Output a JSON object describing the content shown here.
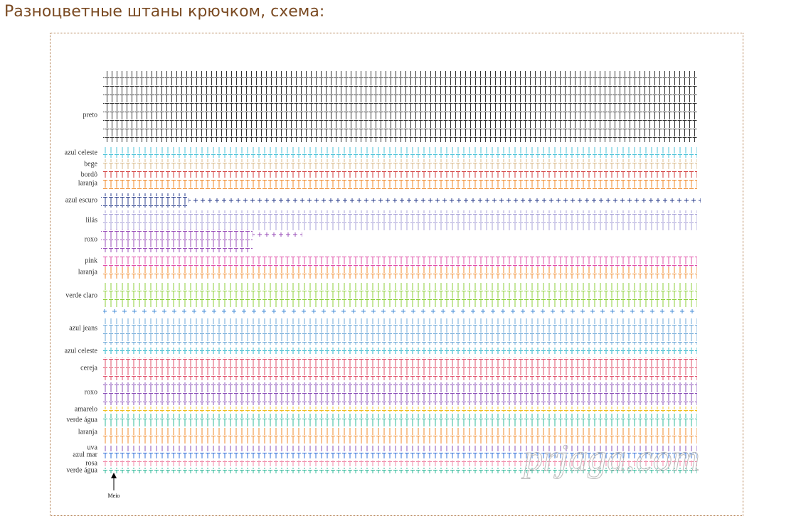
{
  "heading": "Разноцветные штаны крючком, схема:",
  "diagram": {
    "row_labels": [
      "preto",
      "azul celeste",
      "bege",
      "bordô",
      "laranja",
      "azul escuro",
      "lilás",
      "roxo",
      "pink",
      "laranja",
      "verde claro",
      "azul jeans",
      "azul celeste",
      "cereja",
      "roxo",
      "amarelo",
      "verde água",
      "laranja",
      "uva",
      "azul mar",
      "rosa",
      "verde água"
    ],
    "center_label": "Meio",
    "watermark": "prjaga.com"
  }
}
